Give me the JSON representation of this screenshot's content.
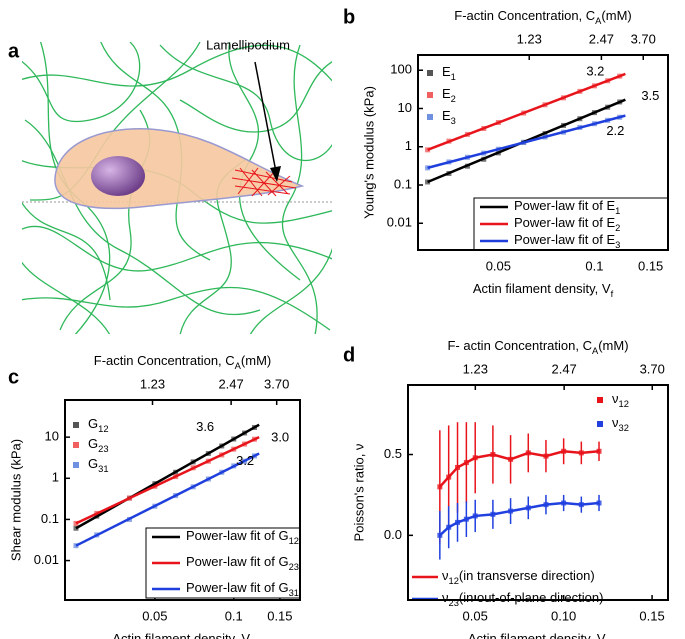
{
  "panel_a": {
    "label": "a",
    "annotation": "Lamellipodium"
  },
  "chart_data": [
    {
      "type": "line",
      "panel_label": "b",
      "xlabel": [
        "Actin filament density, V",
        "f"
      ],
      "x2label": [
        "F-actin Concentration, C",
        "A",
        "(mM)"
      ],
      "ylabel": "Young's modulus (kPa)",
      "xscale": "log",
      "x2scale": "log",
      "yscale": "log",
      "xlim": [
        0.028,
        0.17
      ],
      "xticks": [
        0.05,
        0.1,
        0.15
      ],
      "x2lim": [
        0.42,
        4.7
      ],
      "x2ticks": [
        1.23,
        2.47,
        {
          "value": 3.7,
          "label": "3.70"
        }
      ],
      "ylim": [
        0.002,
        250
      ],
      "yticks": [
        0.01,
        0.1,
        1,
        10,
        100
      ],
      "series": [
        {
          "name": [
            "E",
            "1"
          ],
          "color": "#555555",
          "x": [
            0.03,
            0.035,
            0.04,
            0.045,
            0.05,
            0.06,
            0.07,
            0.08,
            0.09,
            0.1,
            0.11,
            0.12
          ],
          "values": [
            0.12,
            0.2,
            0.31,
            0.47,
            0.69,
            1.3,
            2.2,
            3.6,
            5.4,
            7.8,
            10.8,
            14.8
          ]
        },
        {
          "name": [
            "E",
            "2"
          ],
          "color": "#f06060",
          "x": [
            0.03,
            0.035,
            0.04,
            0.045,
            0.05,
            0.06,
            0.07,
            0.08,
            0.09,
            0.1,
            0.11,
            0.12
          ],
          "values": [
            0.83,
            1.4,
            2.1,
            3.0,
            4.3,
            7.6,
            12.5,
            19,
            28,
            39,
            53,
            70
          ]
        },
        {
          "name": [
            "E",
            "3"
          ],
          "color": "#7090e0",
          "x": [
            0.03,
            0.035,
            0.04,
            0.045,
            0.05,
            0.06,
            0.07,
            0.08,
            0.09,
            0.1,
            0.11,
            0.12
          ],
          "values": [
            0.28,
            0.4,
            0.53,
            0.68,
            0.86,
            1.3,
            1.8,
            2.4,
            3.2,
            4.0,
            4.9,
            5.9
          ]
        }
      ],
      "fits": [
        {
          "name": [
            "Power-law fit of E",
            "1"
          ],
          "color": "#000000",
          "x": [
            0.03,
            0.125
          ],
          "values": [
            0.12,
            17
          ],
          "exponent_label": "3.5"
        },
        {
          "name": [
            "Power-law fit of E",
            "2"
          ],
          "color": "#e8141b",
          "x": [
            0.03,
            0.125
          ],
          "values": [
            0.83,
            80
          ],
          "exponent_label": "3.2"
        },
        {
          "name": [
            "Power-law fit of E",
            "3"
          ],
          "color": "#1f3fdc",
          "x": [
            0.03,
            0.125
          ],
          "values": [
            0.28,
            6.5
          ],
          "exponent_label": "2.2"
        }
      ]
    },
    {
      "type": "line",
      "panel_label": "c",
      "xlabel": [
        "Actin filament density, V",
        "f"
      ],
      "x2label": [
        "F-actin Concentration, C",
        "A",
        "(mM)"
      ],
      "ylabel": "Shear modulus (kPa)",
      "xscale": "log",
      "x2scale": "log",
      "yscale": "log",
      "xlim": [
        0.0227,
        0.179
      ],
      "xticks": [
        0.05,
        0.1,
        0.15
      ],
      "x2lim": [
        0.566,
        4.55
      ],
      "x2ticks": [
        1.23,
        2.47,
        {
          "value": 3.7,
          "label": "3.70"
        }
      ],
      "ylim": [
        0.0011,
        80
      ],
      "yticks": [
        0.01,
        0.1,
        1,
        10
      ],
      "series": [
        {
          "name": [
            "G",
            "12"
          ],
          "color": "#555555",
          "x": [
            0.025,
            0.03,
            0.04,
            0.05,
            0.06,
            0.07,
            0.08,
            0.09,
            0.1,
            0.11,
            0.12
          ],
          "values": [
            0.061,
            0.12,
            0.33,
            0.74,
            1.4,
            2.5,
            4.0,
            6.1,
            9.0,
            12.6,
            17.2
          ]
        },
        {
          "name": [
            "G",
            "23"
          ],
          "color": "#f06060",
          "x": [
            0.025,
            0.03,
            0.04,
            0.05,
            0.06,
            0.07,
            0.08,
            0.09,
            0.1,
            0.11,
            0.12
          ],
          "values": [
            0.08,
            0.14,
            0.33,
            0.64,
            1.1,
            1.8,
            2.6,
            3.7,
            5.1,
            6.8,
            8.9
          ]
        },
        {
          "name": [
            "G",
            "31"
          ],
          "color": "#7090e0",
          "x": [
            0.025,
            0.03,
            0.04,
            0.05,
            0.06,
            0.07,
            0.08,
            0.09,
            0.1,
            0.11,
            0.12
          ],
          "values": [
            0.023,
            0.042,
            0.1,
            0.21,
            0.38,
            0.62,
            0.96,
            1.4,
            2.0,
            2.6,
            3.5
          ]
        }
      ],
      "fits": [
        {
          "name": [
            "Power-law fit of G",
            "12"
          ],
          "color": "#000000",
          "x": [
            0.025,
            0.125
          ],
          "values": [
            0.061,
            20
          ],
          "exponent_label": "3.6"
        },
        {
          "name": [
            "Power-law fit of G",
            "23"
          ],
          "color": "#e8141b",
          "x": [
            0.025,
            0.125
          ],
          "values": [
            0.08,
            10
          ],
          "exponent_label": "3.0"
        },
        {
          "name": [
            "Power-law fit of G",
            "31"
          ],
          "color": "#1f3fdc",
          "x": [
            0.025,
            0.125
          ],
          "values": [
            0.023,
            4
          ],
          "exponent_label": "3.2"
        }
      ]
    },
    {
      "type": "line",
      "panel_label": "d",
      "xlabel": [
        "Actin filament density, V",
        "f"
      ],
      "x2label": [
        "F- actin Concentration, C",
        "A",
        "(mM)"
      ],
      "ylabel": "Poisson's ratio, ν",
      "xscale": "linear",
      "x2scale": "linear",
      "yscale": "linear",
      "xlim": [
        0.012,
        0.159
      ],
      "xticks": [
        0.05,
        {
          "value": 0.1,
          "label": "0.10"
        },
        0.15
      ],
      "x2lim": [
        0.29,
        3.92
      ],
      "x2ticks": [
        1.23,
        2.47,
        {
          "value": 3.7,
          "label": "3.70"
        }
      ],
      "ylim": [
        -0.4,
        0.93
      ],
      "yticks": [
        0.5,
        {
          "value": 0,
          "label": "0.0"
        }
      ],
      "series": [
        {
          "name": [
            "ν",
            "12"
          ],
          "line_name": [
            "ν",
            "12",
            "(in transverse direction)"
          ],
          "color": "#e8141b",
          "x": [
            0.03,
            0.035,
            0.04,
            0.045,
            0.05,
            0.06,
            0.07,
            0.08,
            0.09,
            0.1,
            0.11,
            0.12
          ],
          "values": [
            0.3,
            0.36,
            0.42,
            0.45,
            0.48,
            0.5,
            0.47,
            0.51,
            0.49,
            0.52,
            0.51,
            0.52
          ],
          "errors": [
            0.35,
            0.32,
            0.28,
            0.25,
            0.22,
            0.18,
            0.15,
            0.12,
            0.1,
            0.08,
            0.07,
            0.06
          ]
        },
        {
          "name": [
            "ν",
            "32"
          ],
          "line_name": [
            "ν",
            "23",
            "(in out-of-plane direction)"
          ],
          "color": "#2040e0",
          "x": [
            0.03,
            0.035,
            0.04,
            0.045,
            0.05,
            0.06,
            0.07,
            0.08,
            0.09,
            0.1,
            0.11,
            0.12
          ],
          "values": [
            0.0,
            0.05,
            0.08,
            0.1,
            0.12,
            0.13,
            0.15,
            0.17,
            0.19,
            0.2,
            0.19,
            0.2
          ],
          "errors": [
            0.15,
            0.13,
            0.12,
            0.11,
            0.1,
            0.09,
            0.08,
            0.07,
            0.06,
            0.05,
            0.05,
            0.05
          ]
        }
      ]
    }
  ]
}
